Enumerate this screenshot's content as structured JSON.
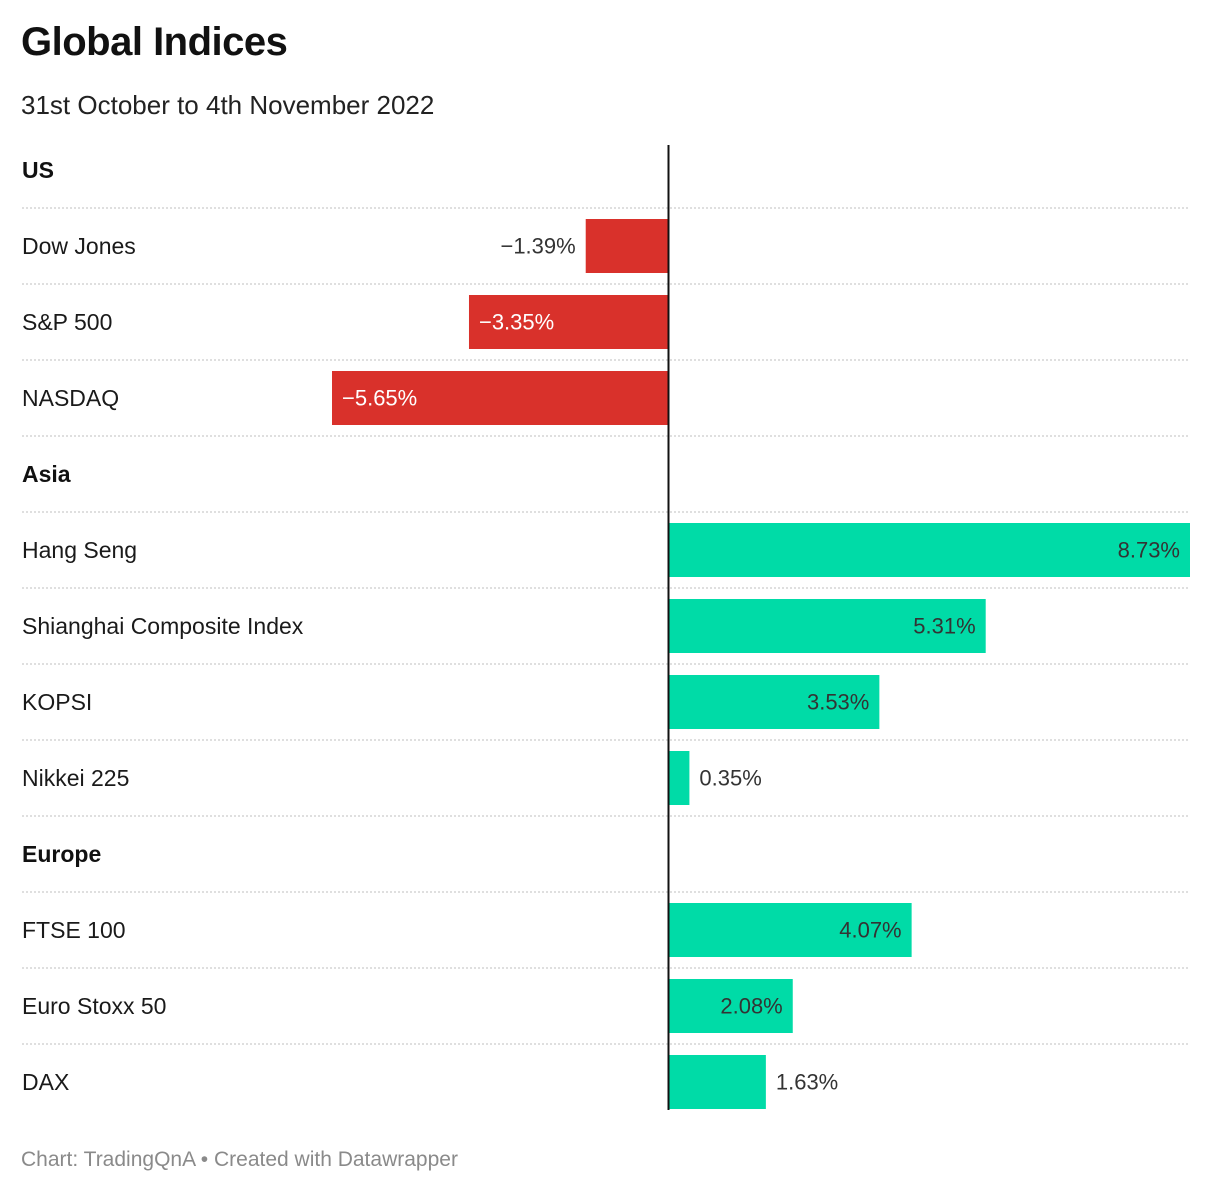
{
  "title": "Global Indices",
  "subtitle": "31st October to 4th November 2022",
  "footer": {
    "source": "Chart: TradingQnA",
    "separator": "•",
    "credit": "Created with Datawrapper"
  },
  "colors": {
    "negative": "#d9312b",
    "positive": "#00dba7",
    "axis": "#111111",
    "separator": "#cccccc",
    "label_on_negative": "#ffffff",
    "label_on_positive": "#333333",
    "label_outside": "#333333"
  },
  "chart_data": {
    "type": "bar",
    "orientation": "horizontal",
    "title": "Global Indices",
    "subtitle": "31st October to 4th November 2022",
    "value_suffix": "%",
    "xlim": [
      -5.65,
      8.73
    ],
    "grid": false,
    "groups": [
      {
        "name": "US",
        "rows": [
          {
            "label": "Dow Jones",
            "value": -1.39,
            "display": "−1.39%"
          },
          {
            "label": "S&P 500",
            "value": -3.35,
            "display": "−3.35%"
          },
          {
            "label": "NASDAQ",
            "value": -5.65,
            "display": "−5.65%"
          }
        ]
      },
      {
        "name": "Asia",
        "rows": [
          {
            "label": "Hang Seng",
            "value": 8.73,
            "display": "8.73%"
          },
          {
            "label": "Shianghai Composite Index",
            "value": 5.31,
            "display": "5.31%"
          },
          {
            "label": "KOPSI",
            "value": 3.53,
            "display": "3.53%"
          },
          {
            "label": "Nikkei 225",
            "value": 0.35,
            "display": "0.35%"
          }
        ]
      },
      {
        "name": "Europe",
        "rows": [
          {
            "label": "FTSE 100",
            "value": 4.07,
            "display": "4.07%"
          },
          {
            "label": "Euro Stoxx 50",
            "value": 2.08,
            "display": "2.08%"
          },
          {
            "label": "DAX",
            "value": 1.63,
            "display": "1.63%"
          }
        ]
      }
    ]
  }
}
